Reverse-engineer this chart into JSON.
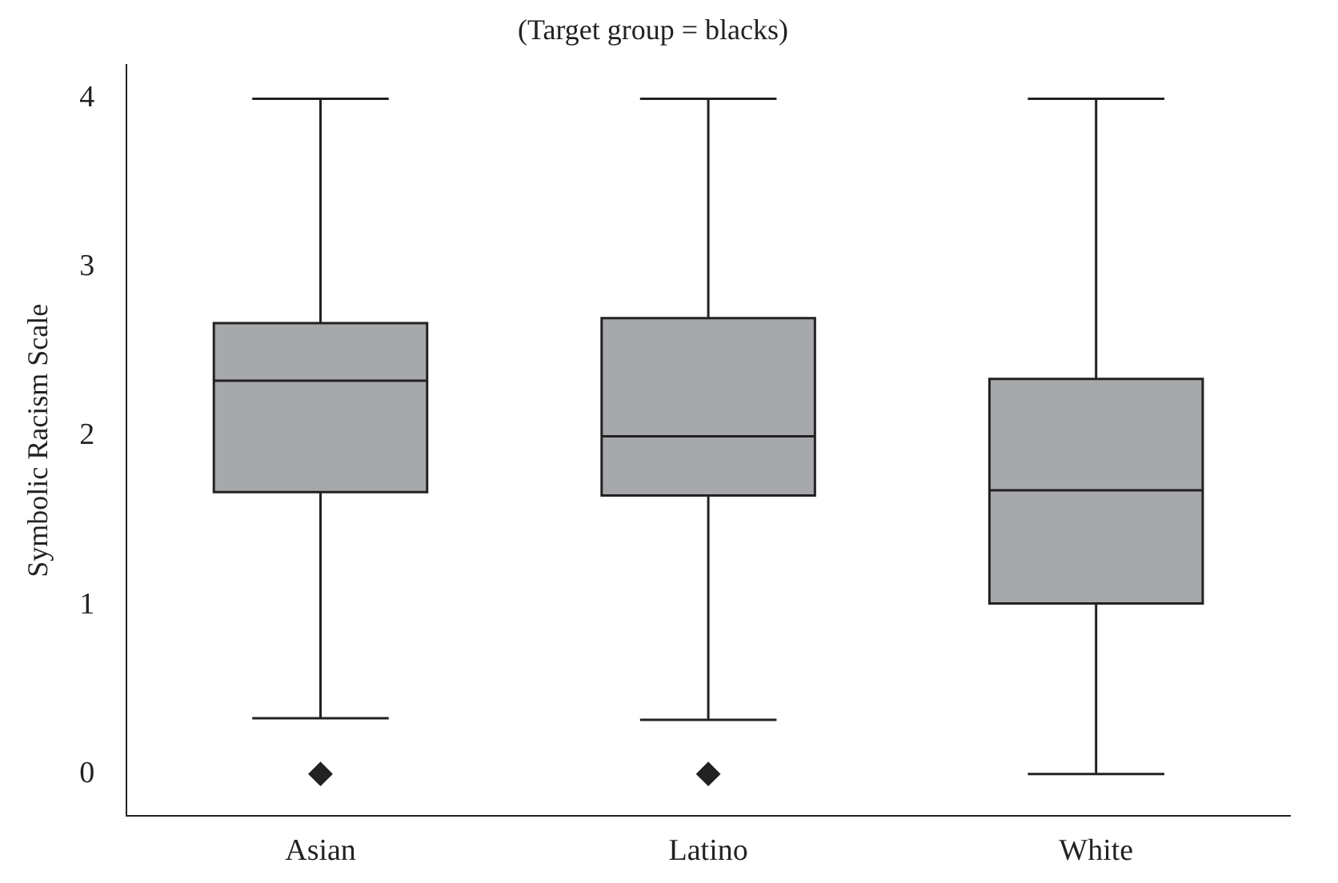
{
  "chart_data": {
    "type": "box",
    "title": "(Target group = blacks)",
    "ylabel": "Symbolic Racism Scale",
    "categories": [
      "Asian",
      "Latino",
      "White"
    ],
    "boxes": [
      {
        "low": 0.33,
        "q1": 1.67,
        "median": 2.33,
        "q3": 2.67,
        "high": 4,
        "outliers": [
          0
        ]
      },
      {
        "low": 0.32,
        "q1": 1.65,
        "median": 2.0,
        "q3": 2.7,
        "high": 4,
        "outliers": [
          0
        ]
      },
      {
        "low": 0,
        "q1": 1.01,
        "median": 1.68,
        "q3": 2.34,
        "high": 4
      }
    ],
    "color": "#a7a8ab",
    "ylim": [
      -0.25,
      4.2
    ],
    "yticks": [
      0,
      1,
      2,
      3,
      4
    ],
    "grid": false,
    "legend": false,
    "marker": "diamond"
  }
}
